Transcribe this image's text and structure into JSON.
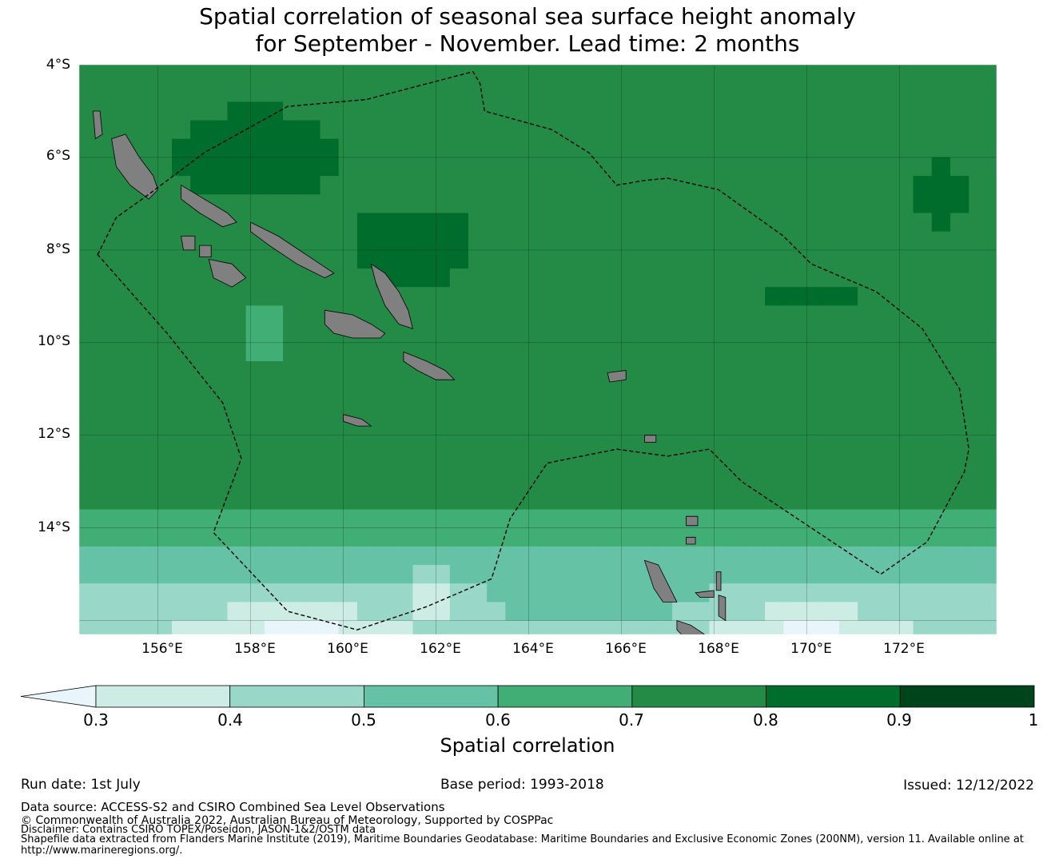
{
  "title": {
    "line1": "Spatial correlation of seasonal sea surface height anomaly",
    "line2": "for September - November. Lead time: 2 months"
  },
  "map": {
    "lat_labels": [
      "4°S",
      "6°S",
      "8°S",
      "10°S",
      "12°S",
      "14°S"
    ],
    "lon_labels": [
      "156°E",
      "158°E",
      "160°E",
      "162°E",
      "164°E",
      "166°E",
      "168°E",
      "170°E",
      "172°E"
    ],
    "extent": {
      "lon_min": 154.3,
      "lon_max": 174.1,
      "lat_min": -16.3,
      "lat_max": -4.0
    },
    "land_color": "#808080",
    "land_masses": [
      {
        "name": "Bougainville",
        "points": [
          [
            155.0,
            -5.6
          ],
          [
            155.3,
            -5.5
          ],
          [
            155.6,
            -6.0
          ],
          [
            155.9,
            -6.4
          ],
          [
            156.0,
            -6.7
          ],
          [
            155.8,
            -6.9
          ],
          [
            155.4,
            -6.6
          ],
          [
            155.1,
            -6.2
          ]
        ]
      },
      {
        "name": "Buka",
        "points": [
          [
            154.6,
            -5.0
          ],
          [
            154.75,
            -5.0
          ],
          [
            154.8,
            -5.5
          ],
          [
            154.65,
            -5.6
          ]
        ]
      },
      {
        "name": "Choiseul",
        "points": [
          [
            156.5,
            -6.6
          ],
          [
            157.0,
            -6.9
          ],
          [
            157.5,
            -7.2
          ],
          [
            157.7,
            -7.4
          ],
          [
            157.4,
            -7.5
          ],
          [
            156.9,
            -7.2
          ],
          [
            156.5,
            -6.9
          ]
        ]
      },
      {
        "name": "Santa Isabel",
        "points": [
          [
            158.0,
            -7.4
          ],
          [
            158.6,
            -7.7
          ],
          [
            159.2,
            -8.1
          ],
          [
            159.8,
            -8.5
          ],
          [
            159.6,
            -8.6
          ],
          [
            159.0,
            -8.3
          ],
          [
            158.4,
            -7.9
          ],
          [
            158.0,
            -7.6
          ]
        ]
      },
      {
        "name": "New Georgia",
        "points": [
          [
            157.1,
            -8.2
          ],
          [
            157.6,
            -8.3
          ],
          [
            157.9,
            -8.6
          ],
          [
            157.6,
            -8.8
          ],
          [
            157.2,
            -8.6
          ]
        ]
      },
      {
        "name": "Vella Lavella",
        "points": [
          [
            156.5,
            -7.7
          ],
          [
            156.8,
            -7.7
          ],
          [
            156.8,
            -8.0
          ],
          [
            156.55,
            -8.0
          ]
        ]
      },
      {
        "name": "Kolombangara",
        "points": [
          [
            156.9,
            -7.9
          ],
          [
            157.15,
            -7.9
          ],
          [
            157.15,
            -8.15
          ],
          [
            156.9,
            -8.15
          ]
        ]
      },
      {
        "name": "Malaita",
        "points": [
          [
            160.6,
            -8.3
          ],
          [
            160.9,
            -8.5
          ],
          [
            161.2,
            -8.9
          ],
          [
            161.4,
            -9.3
          ],
          [
            161.5,
            -9.7
          ],
          [
            161.2,
            -9.6
          ],
          [
            160.9,
            -9.2
          ],
          [
            160.7,
            -8.7
          ]
        ]
      },
      {
        "name": "Guadalcanal",
        "points": [
          [
            159.6,
            -9.3
          ],
          [
            160.2,
            -9.4
          ],
          [
            160.6,
            -9.6
          ],
          [
            160.9,
            -9.8
          ],
          [
            160.8,
            -9.9
          ],
          [
            160.2,
            -9.9
          ],
          [
            159.8,
            -9.8
          ],
          [
            159.6,
            -9.6
          ]
        ]
      },
      {
        "name": "Makira",
        "points": [
          [
            161.3,
            -10.2
          ],
          [
            161.8,
            -10.4
          ],
          [
            162.2,
            -10.6
          ],
          [
            162.4,
            -10.8
          ],
          [
            162.0,
            -10.8
          ],
          [
            161.6,
            -10.6
          ],
          [
            161.3,
            -10.4
          ]
        ]
      },
      {
        "name": "Rennell",
        "points": [
          [
            160.0,
            -11.55
          ],
          [
            160.4,
            -11.65
          ],
          [
            160.6,
            -11.8
          ],
          [
            160.3,
            -11.8
          ],
          [
            160.0,
            -11.7
          ]
        ]
      },
      {
        "name": "Nendo",
        "points": [
          [
            165.7,
            -10.65
          ],
          [
            166.1,
            -10.6
          ],
          [
            166.1,
            -10.8
          ],
          [
            165.75,
            -10.85
          ]
        ]
      },
      {
        "name": "Espiritu Santo",
        "points": [
          [
            166.5,
            -14.7
          ],
          [
            166.8,
            -14.8
          ],
          [
            167.0,
            -15.2
          ],
          [
            167.2,
            -15.6
          ],
          [
            166.9,
            -15.6
          ],
          [
            166.7,
            -15.3
          ],
          [
            166.6,
            -15.0
          ]
        ]
      },
      {
        "name": "Malakula",
        "points": [
          [
            167.2,
            -16.0
          ],
          [
            167.5,
            -16.1
          ],
          [
            167.8,
            -16.3
          ],
          [
            167.3,
            -16.3
          ],
          [
            167.2,
            -16.2
          ]
        ]
      },
      {
        "name": "Ambae",
        "points": [
          [
            167.6,
            -15.4
          ],
          [
            168.0,
            -15.35
          ],
          [
            168.0,
            -15.5
          ],
          [
            167.7,
            -15.5
          ]
        ]
      },
      {
        "name": "Gaua",
        "points": [
          [
            167.4,
            -14.2
          ],
          [
            167.6,
            -14.2
          ],
          [
            167.6,
            -14.35
          ],
          [
            167.4,
            -14.35
          ]
        ]
      },
      {
        "name": "Vanua Lava",
        "points": [
          [
            167.4,
            -13.75
          ],
          [
            167.65,
            -13.75
          ],
          [
            167.65,
            -13.95
          ],
          [
            167.4,
            -13.95
          ]
        ]
      },
      {
        "name": "Pentecost",
        "points": [
          [
            168.1,
            -15.45
          ],
          [
            168.25,
            -15.5
          ],
          [
            168.25,
            -16.0
          ],
          [
            168.1,
            -15.9
          ]
        ]
      },
      {
        "name": "Maewo",
        "points": [
          [
            168.05,
            -14.95
          ],
          [
            168.15,
            -14.95
          ],
          [
            168.15,
            -15.35
          ],
          [
            168.05,
            -15.35
          ]
        ]
      },
      {
        "name": "Duff",
        "points": [
          [
            166.5,
            -12.0
          ],
          [
            166.75,
            -12.0
          ],
          [
            166.75,
            -12.15
          ],
          [
            166.5,
            -12.15
          ]
        ]
      }
    ],
    "eez_boundaries": [
      {
        "name": "Solomon Islands EEZ",
        "points": [
          [
            154.7,
            -8.1
          ],
          [
            155.1,
            -7.3
          ],
          [
            155.8,
            -6.8
          ],
          [
            157.0,
            -5.9
          ],
          [
            158.8,
            -4.9
          ],
          [
            160.5,
            -4.75
          ],
          [
            162.8,
            -4.15
          ],
          [
            162.95,
            -4.4
          ],
          [
            163.05,
            -5.0
          ],
          [
            164.5,
            -5.4
          ],
          [
            165.3,
            -5.9
          ],
          [
            165.9,
            -6.6
          ],
          [
            166.5,
            -6.5
          ],
          [
            167.0,
            -6.45
          ],
          [
            168.1,
            -6.7
          ],
          [
            169.5,
            -7.7
          ],
          [
            170.1,
            -8.3
          ],
          [
            171.5,
            -8.9
          ],
          [
            172.5,
            -9.7
          ],
          [
            173.3,
            -11.0
          ],
          [
            173.5,
            -12.3
          ],
          [
            173.4,
            -12.8
          ],
          [
            172.6,
            -14.3
          ],
          [
            171.6,
            -15.0
          ],
          [
            170.1,
            -14.0
          ],
          [
            168.6,
            -13.0
          ],
          [
            167.9,
            -12.3
          ],
          [
            167.0,
            -12.45
          ],
          [
            165.9,
            -12.3
          ],
          [
            164.4,
            -12.6
          ],
          [
            163.6,
            -13.8
          ],
          [
            163.2,
            -15.1
          ],
          [
            161.8,
            -15.7
          ],
          [
            160.3,
            -16.2
          ],
          [
            158.8,
            -15.8
          ],
          [
            157.2,
            -14.1
          ],
          [
            157.8,
            -12.5
          ],
          [
            157.4,
            -11.3
          ],
          [
            156.2,
            -9.8
          ]
        ]
      }
    ]
  },
  "colorbar": {
    "label": "Spatial correlation",
    "ticks": [
      "0.3",
      "0.4",
      "0.5",
      "0.6",
      "0.7",
      "0.8",
      "0.9",
      "1"
    ],
    "bins": [
      {
        "range": "<0.3",
        "color": "#e8f5fa"
      },
      {
        "range": "0.3-0.4",
        "color": "#cdece4"
      },
      {
        "range": "0.4-0.5",
        "color": "#99d8c9"
      },
      {
        "range": "0.5-0.6",
        "color": "#66c2a4"
      },
      {
        "range": "0.6-0.7",
        "color": "#41ae76"
      },
      {
        "range": "0.7-0.8",
        "color": "#238b45"
      },
      {
        "range": "0.8-0.9",
        "color": "#006d2c"
      },
      {
        "range": "0.9-1",
        "color": "#00441b"
      }
    ]
  },
  "footer": {
    "run_date": "Run date: 1st July",
    "base_period": "Base period: 1993-2018",
    "issued": "Issued: 12/12/2022",
    "data_source": "Data source: ACCESS-S2 and CSIRO Combined Sea Level Observations",
    "copyright": "© Commonwealth of Australia 2022, Australian Bureau of Meteorology, Supported by COSPPac",
    "disclaimer": "Disclaimer: Contains CSIRO TOPEX/Poseidon, JASON-1&2/OSTM data",
    "shapefile": "Shapefile data extracted from Flanders Marine Institute (2019), Maritime Boundaries Geodatabase: Maritime Boundaries and Exclusive Economic Zones (200NM), version 11. Available online at",
    "url": "http://www.marineregions.org/."
  }
}
